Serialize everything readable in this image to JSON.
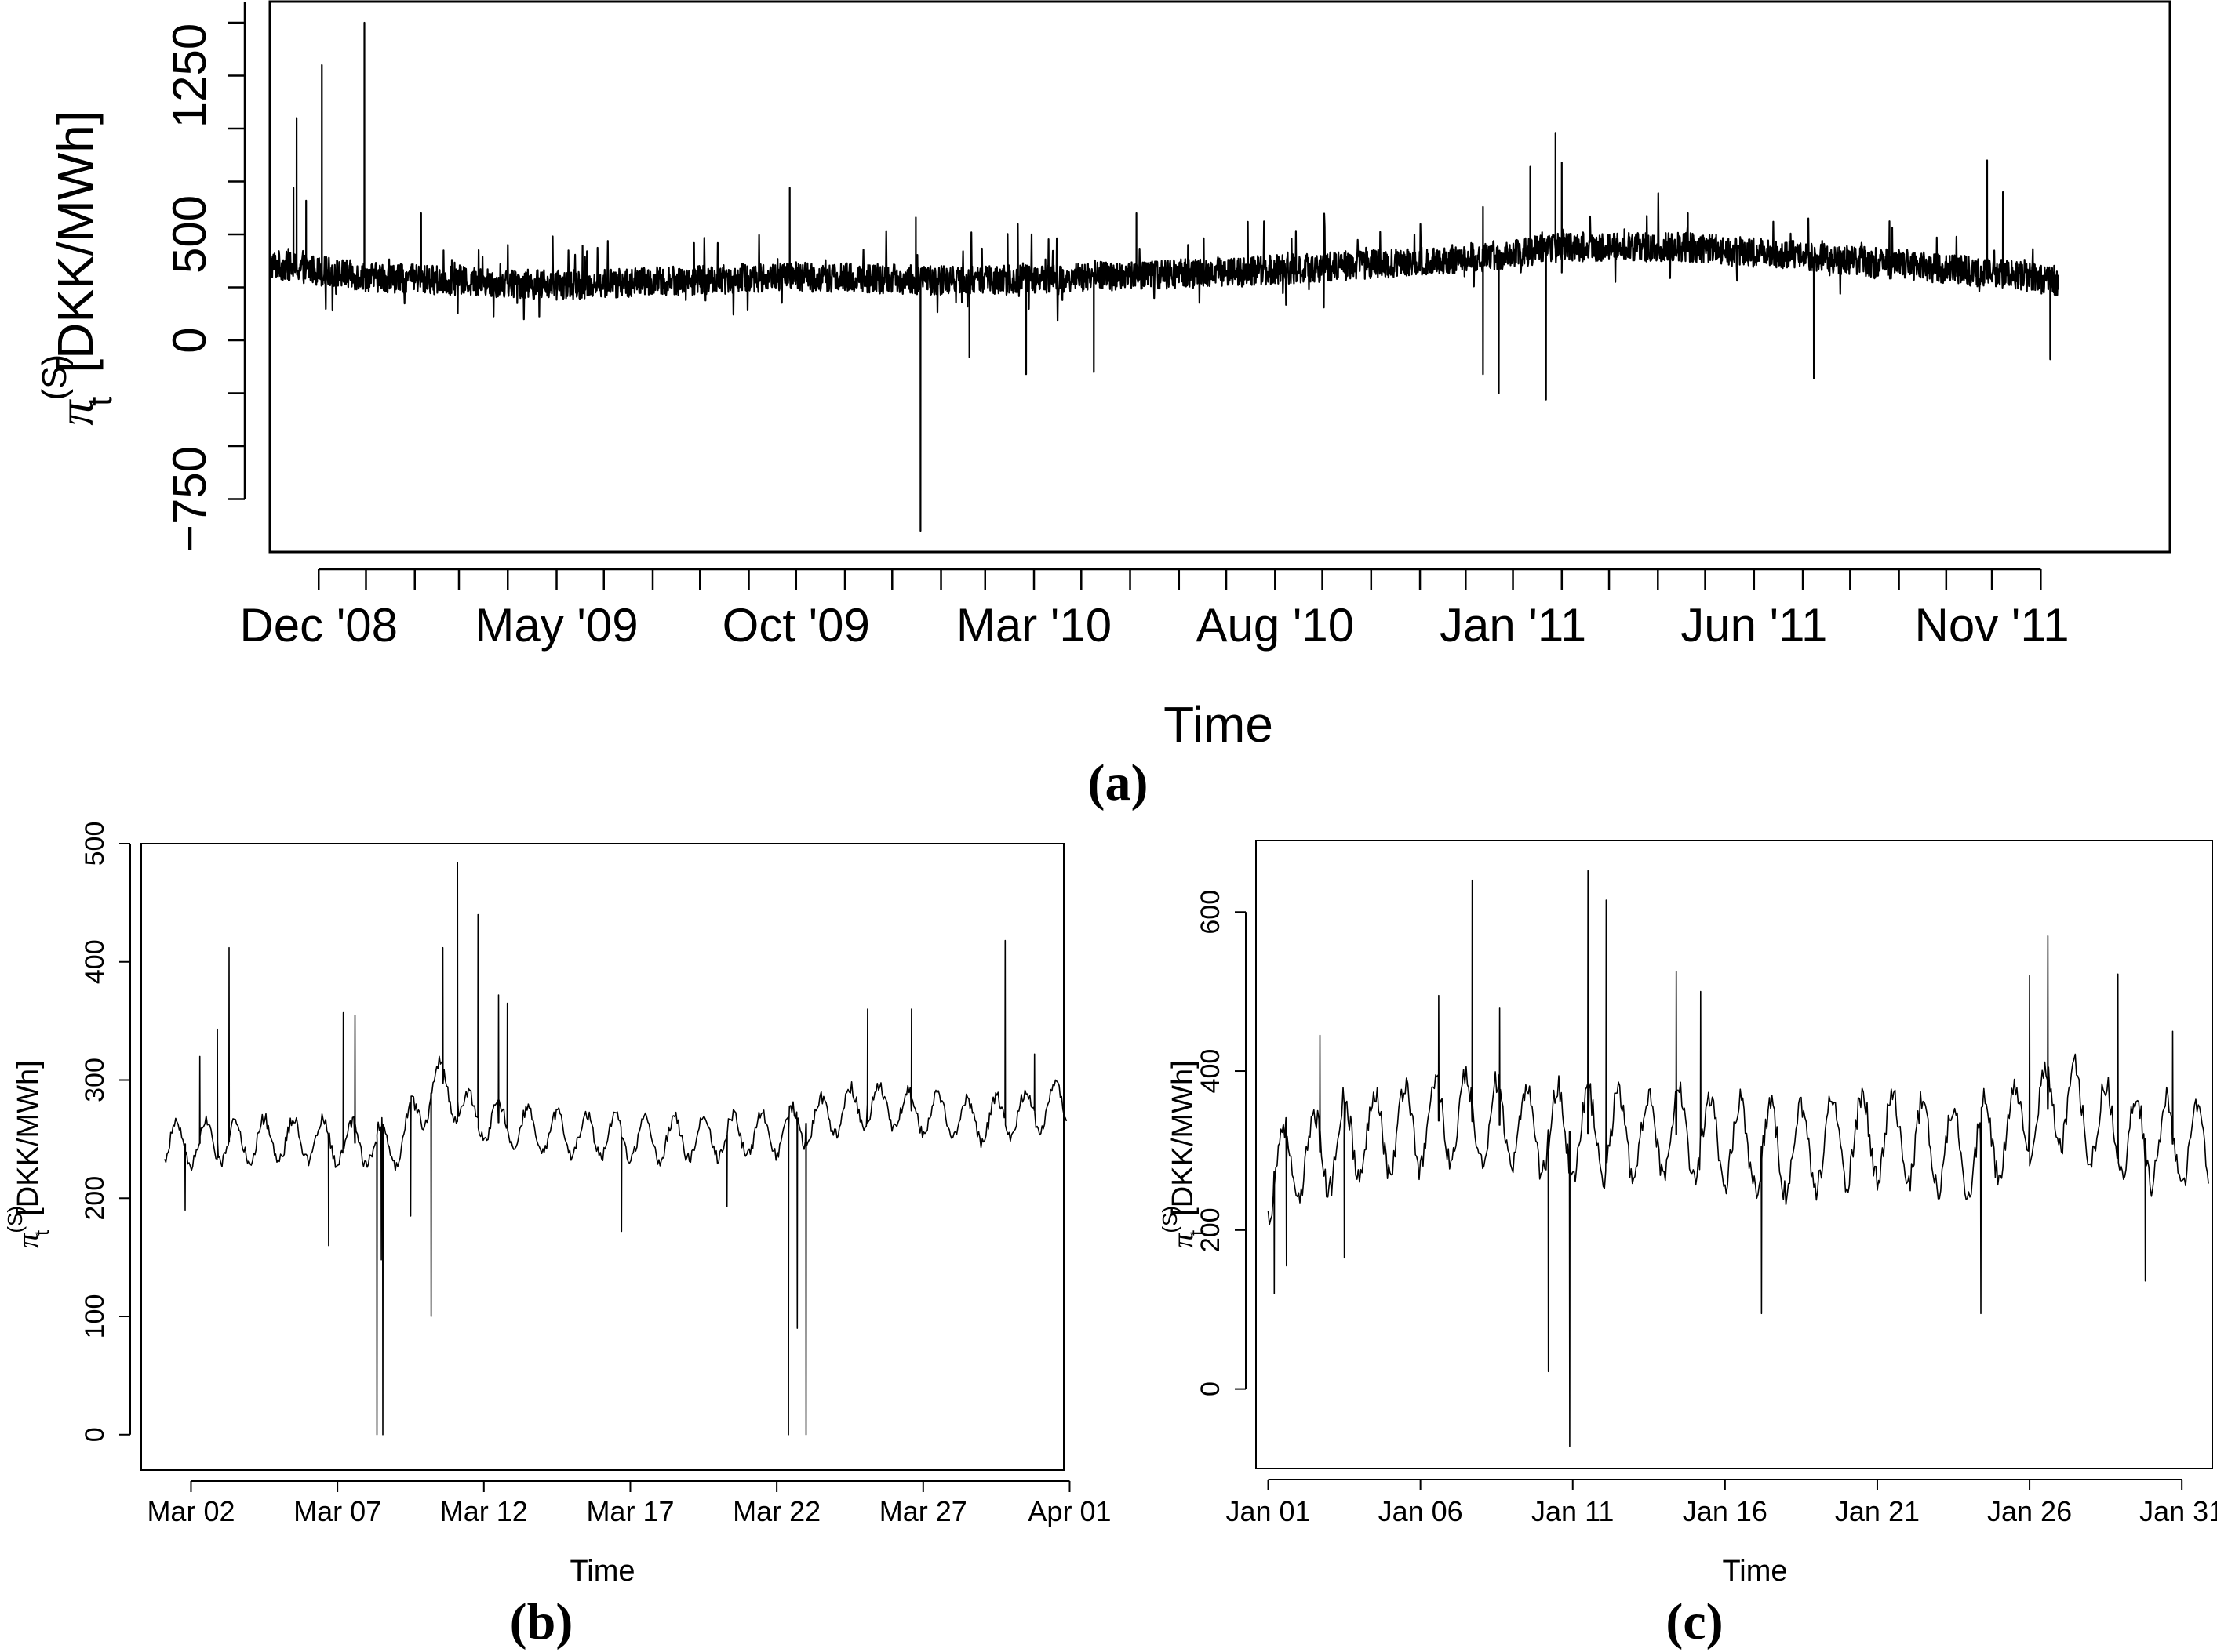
{
  "chart_data": [
    {
      "panel": "(a)",
      "type": "line",
      "xlabel": "Time",
      "ylabel_main": "π",
      "ylabel_sup": "(S)",
      "ylabel_sub": "t",
      "ylabel_unit": "[DKK/MWh]",
      "ylim": [
        -1000,
        1600
      ],
      "yticks": [
        -750,
        0,
        500,
        1250
      ],
      "ytick_labels": [
        "−750",
        "0",
        "500",
        "1250"
      ],
      "xlim_days": [
        0,
        1206
      ],
      "xticks_days": [
        31,
        182,
        334,
        485,
        638,
        789,
        942,
        1093
      ],
      "xtick_labels": [
        "Dec '08",
        "May '09",
        "Oct '09",
        "Mar '10",
        "Aug '10",
        "Jan '11",
        "Jun '11",
        "Nov '11"
      ],
      "minor_ticks_days": [
        61,
        92,
        120,
        151,
        212,
        243,
        273,
        304,
        365,
        395,
        426,
        454,
        515,
        546,
        577,
        607,
        668,
        699,
        730,
        759,
        820,
        850,
        881,
        911,
        973,
        1003,
        1034,
        1064,
        1124
      ],
      "series_range_days": [
        0,
        1135
      ],
      "baseline": [
        [
          0,
          360
        ],
        [
          60,
          300
        ],
        [
          180,
          260
        ],
        [
          330,
          300
        ],
        [
          450,
          280
        ],
        [
          560,
          310
        ],
        [
          660,
          340
        ],
        [
          780,
          400
        ],
        [
          820,
          440
        ],
        [
          900,
          440
        ],
        [
          1000,
          380
        ],
        [
          1090,
          320
        ],
        [
          1135,
          280
        ]
      ],
      "spikes": [
        [
          15,
          720
        ],
        [
          17,
          1050
        ],
        [
          23,
          660
        ],
        [
          33,
          1300
        ],
        [
          60,
          1500
        ],
        [
          96,
          600
        ],
        [
          330,
          720
        ],
        [
          410,
          580
        ],
        [
          550,
          600
        ],
        [
          770,
          630
        ],
        [
          800,
          820
        ],
        [
          816,
          980
        ],
        [
          820,
          840
        ],
        [
          900,
          600
        ],
        [
          1090,
          850
        ],
        [
          1100,
          700
        ],
        [
          413,
          -900
        ],
        [
          444,
          -80
        ],
        [
          480,
          -160
        ],
        [
          523,
          -150
        ],
        [
          770,
          -160
        ],
        [
          780,
          -250
        ],
        [
          810,
          -280
        ],
        [
          980,
          -180
        ],
        [
          1130,
          -90
        ]
      ]
    },
    {
      "panel": "(b)",
      "type": "line",
      "xlabel": "Time",
      "ylabel_main": "π",
      "ylabel_sup": "(S)",
      "ylabel_sub": "t",
      "ylabel_unit": "[DKK/MWh]",
      "ylim": [
        -30,
        500
      ],
      "yticks": [
        0,
        100,
        200,
        300,
        400,
        500
      ],
      "ytick_labels": [
        "0",
        "100",
        "200",
        "300",
        "400",
        "500"
      ],
      "xlim_days": [
        0.3,
        31.8
      ],
      "xticks_days": [
        2,
        7,
        12,
        17,
        22,
        27,
        32
      ],
      "xtick_labels": [
        "Mar 02",
        "Mar 07",
        "Mar 12",
        "Mar 17",
        "Mar 22",
        "Mar 27",
        "Apr 01"
      ],
      "series_range_days": [
        1.1,
        31.9
      ],
      "baseline": [
        [
          1.1,
          245
        ],
        [
          5,
          250
        ],
        [
          9,
          245
        ],
        [
          10.5,
          300
        ],
        [
          11.5,
          270
        ],
        [
          14,
          255
        ],
        [
          18,
          250
        ],
        [
          22,
          255
        ],
        [
          25,
          280
        ],
        [
          29,
          265
        ],
        [
          31.9,
          280
        ]
      ],
      "spikes": [
        [
          2.3,
          320
        ],
        [
          2.9,
          343
        ],
        [
          3.3,
          412
        ],
        [
          7.2,
          357
        ],
        [
          7.6,
          355
        ],
        [
          8.5,
          148
        ],
        [
          8.35,
          0
        ],
        [
          8.55,
          0
        ],
        [
          10.2,
          100
        ],
        [
          10.6,
          412
        ],
        [
          11.1,
          484
        ],
        [
          11.8,
          440
        ],
        [
          12.5,
          372
        ],
        [
          12.8,
          365
        ],
        [
          22.4,
          0
        ],
        [
          22.7,
          90
        ],
        [
          23.0,
          0
        ],
        [
          25.1,
          360
        ],
        [
          26.6,
          360
        ],
        [
          29.8,
          418
        ],
        [
          30.8,
          322
        ],
        [
          1.8,
          190
        ],
        [
          6.7,
          160
        ],
        [
          9.5,
          185
        ],
        [
          16.7,
          172
        ],
        [
          20.3,
          193
        ]
      ]
    },
    {
      "panel": "(c)",
      "type": "line",
      "xlabel": "Time",
      "ylabel_main": "π",
      "ylabel_sup": "(S)",
      "ylabel_sub": "t",
      "ylabel_unit": "[DKK/MWh]",
      "ylim": [
        -100,
        690
      ],
      "yticks": [
        0,
        200,
        400,
        600
      ],
      "ytick_labels": [
        "0",
        "200",
        "400",
        "600"
      ],
      "xlim_days": [
        0.6,
        32.0
      ],
      "xticks_days": [
        1,
        6,
        11,
        16,
        21,
        26,
        31
      ],
      "xtick_labels": [
        "Jan 01",
        "Jan 06",
        "Jan 11",
        "Jan 16",
        "Jan 21",
        "Jan 26",
        "Jan 31"
      ],
      "series_range_days": [
        1.0,
        31.9
      ],
      "baseline": [
        [
          1,
          270
        ],
        [
          4,
          320
        ],
        [
          7,
          340
        ],
        [
          9,
          330
        ],
        [
          12,
          320
        ],
        [
          15,
          320
        ],
        [
          18,
          300
        ],
        [
          21,
          320
        ],
        [
          24,
          300
        ],
        [
          27,
          360
        ],
        [
          29,
          320
        ],
        [
          31.9,
          300
        ]
      ],
      "spikes": [
        [
          1.2,
          120
        ],
        [
          1.6,
          155
        ],
        [
          2.7,
          445
        ],
        [
          6.6,
          495
        ],
        [
          7.7,
          640
        ],
        [
          8.6,
          480
        ],
        [
          10.2,
          22
        ],
        [
          10.9,
          -72
        ],
        [
          11.5,
          652
        ],
        [
          12.1,
          615
        ],
        [
          14.4,
          525
        ],
        [
          15.2,
          500
        ],
        [
          17.2,
          95
        ],
        [
          26.0,
          520
        ],
        [
          26.6,
          570
        ],
        [
          28.9,
          522
        ],
        [
          29.8,
          136
        ],
        [
          30.7,
          450
        ],
        [
          24.4,
          95
        ],
        [
          3.5,
          165
        ]
      ]
    }
  ]
}
